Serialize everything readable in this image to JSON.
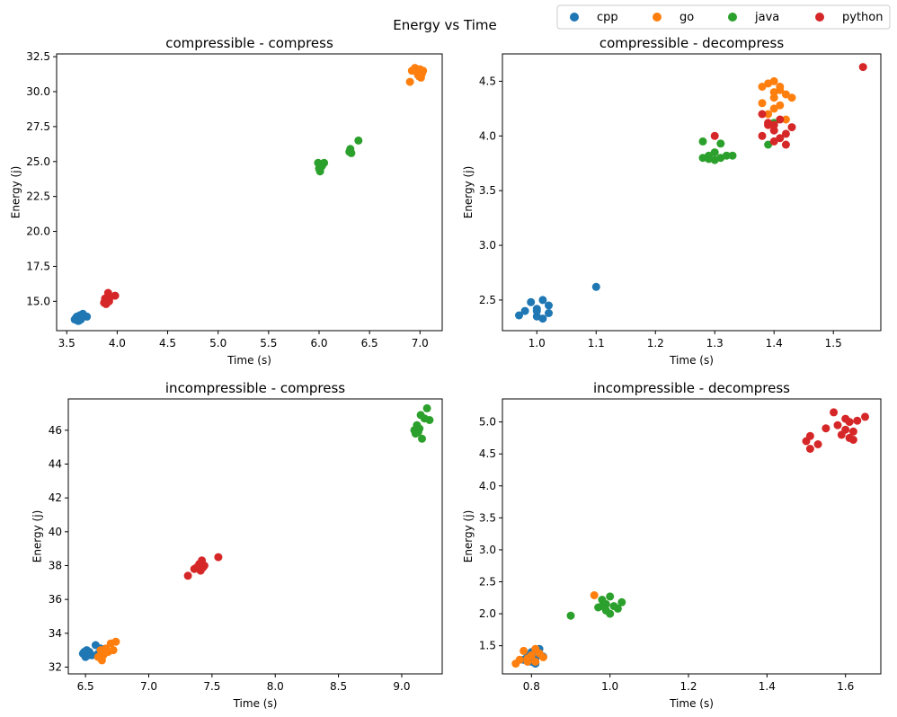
{
  "figure_title": "Energy vs Time",
  "legend": {
    "entries": [
      {
        "name": "cpp",
        "color": "#1f77b4"
      },
      {
        "name": "go",
        "color": "#ff7f0e"
      },
      {
        "name": "java",
        "color": "#2ca02c"
      },
      {
        "name": "python",
        "color": "#d62728"
      }
    ],
    "placement": "top-right"
  },
  "chart_data": [
    {
      "type": "scatter",
      "title": "compressible - compress",
      "xlabel": "Time (s)",
      "ylabel": "Energy (j)",
      "xlim": [
        3.4,
        7.22
      ],
      "ylim": [
        12.9,
        32.7
      ],
      "xticks": [
        "3.5",
        "4.0",
        "4.5",
        "5.0",
        "5.5",
        "6.0",
        "6.5",
        "7.0"
      ],
      "yticks": [
        "15.0",
        "17.5",
        "20.0",
        "22.5",
        "25.0",
        "27.5",
        "30.0",
        "32.5"
      ],
      "series": [
        {
          "name": "cpp",
          "color": "#1f77b4",
          "points": [
            [
              3.58,
              13.7
            ],
            [
              3.6,
              13.9
            ],
            [
              3.61,
              13.6
            ],
            [
              3.62,
              13.8
            ],
            [
              3.63,
              14.0
            ],
            [
              3.64,
              13.7
            ],
            [
              3.66,
              14.1
            ],
            [
              3.7,
              13.9
            ],
            [
              3.59,
              13.8
            ],
            [
              3.62,
              13.6
            ]
          ]
        },
        {
          "name": "go",
          "color": "#ff7f0e",
          "points": [
            [
              6.9,
              30.7
            ],
            [
              6.92,
              31.5
            ],
            [
              6.95,
              31.7
            ],
            [
              6.97,
              31.4
            ],
            [
              6.98,
              31.2
            ],
            [
              7.0,
              31.6
            ],
            [
              7.01,
              31.0
            ],
            [
              7.02,
              31.3
            ],
            [
              6.99,
              31.1
            ],
            [
              7.03,
              31.5
            ]
          ]
        },
        {
          "name": "java",
          "color": "#2ca02c",
          "points": [
            [
              5.99,
              24.9
            ],
            [
              6.0,
              24.5
            ],
            [
              6.01,
              24.3
            ],
            [
              6.02,
              24.6
            ],
            [
              6.03,
              24.7
            ],
            [
              6.05,
              24.9
            ],
            [
              6.3,
              25.7
            ],
            [
              6.31,
              25.9
            ],
            [
              6.32,
              25.6
            ],
            [
              6.39,
              26.5
            ]
          ]
        },
        {
          "name": "python",
          "color": "#d62728",
          "points": [
            [
              3.87,
              14.9
            ],
            [
              3.88,
              15.2
            ],
            [
              3.89,
              14.8
            ],
            [
              3.9,
              15.1
            ],
            [
              3.91,
              15.6
            ],
            [
              3.92,
              15.0
            ],
            [
              3.93,
              15.3
            ],
            [
              3.98,
              15.4
            ],
            [
              3.9,
              14.9
            ]
          ]
        }
      ]
    },
    {
      "type": "scatter",
      "title": "compressible - decompress",
      "xlabel": "Time (s)",
      "ylabel": "Energy (j)",
      "xlim": [
        0.942,
        1.58
      ],
      "ylim": [
        2.22,
        4.75
      ],
      "xticks": [
        "1.0",
        "1.1",
        "1.2",
        "1.3",
        "1.4",
        "1.5"
      ],
      "yticks": [
        "2.5",
        "3.0",
        "3.5",
        "4.0",
        "4.5"
      ],
      "series": [
        {
          "name": "cpp",
          "color": "#1f77b4",
          "points": [
            [
              0.97,
              2.36
            ],
            [
              0.98,
              2.4
            ],
            [
              0.99,
              2.48
            ],
            [
              1.0,
              2.35
            ],
            [
              1.0,
              2.42
            ],
            [
              1.01,
              2.5
            ],
            [
              1.01,
              2.33
            ],
            [
              1.02,
              2.45
            ],
            [
              1.02,
              2.38
            ],
            [
              1.0,
              2.4
            ],
            [
              1.1,
              2.62
            ]
          ]
        },
        {
          "name": "go",
          "color": "#ff7f0e",
          "points": [
            [
              1.38,
              4.45
            ],
            [
              1.38,
              4.3
            ],
            [
              1.39,
              4.2
            ],
            [
              1.39,
              4.48
            ],
            [
              1.4,
              4.4
            ],
            [
              1.4,
              4.5
            ],
            [
              1.4,
              4.35
            ],
            [
              1.41,
              4.28
            ],
            [
              1.41,
              4.42
            ],
            [
              1.42,
              4.38
            ],
            [
              1.42,
              4.15
            ],
            [
              1.43,
              4.35
            ],
            [
              1.4,
              4.25
            ],
            [
              1.39,
              4.1
            ],
            [
              1.41,
              4.45
            ]
          ]
        },
        {
          "name": "java",
          "color": "#2ca02c",
          "points": [
            [
              1.28,
              3.95
            ],
            [
              1.28,
              3.8
            ],
            [
              1.29,
              3.82
            ],
            [
              1.3,
              3.78
            ],
            [
              1.3,
              3.85
            ],
            [
              1.31,
              3.93
            ],
            [
              1.31,
              3.8
            ],
            [
              1.32,
              3.82
            ],
            [
              1.33,
              3.82
            ],
            [
              1.29,
              3.79
            ],
            [
              1.39,
              3.92
            ],
            [
              1.4,
              4.12
            ]
          ]
        },
        {
          "name": "python",
          "color": "#d62728",
          "points": [
            [
              1.3,
              4.0
            ],
            [
              1.38,
              4.2
            ],
            [
              1.38,
              4.0
            ],
            [
              1.39,
              4.1
            ],
            [
              1.4,
              3.95
            ],
            [
              1.4,
              4.05
            ],
            [
              1.41,
              4.15
            ],
            [
              1.41,
              3.98
            ],
            [
              1.42,
              4.02
            ],
            [
              1.42,
              3.92
            ],
            [
              1.43,
              4.08
            ],
            [
              1.4,
              4.1
            ],
            [
              1.39,
              4.12
            ],
            [
              1.55,
              4.63
            ]
          ]
        }
      ]
    },
    {
      "type": "scatter",
      "title": "incompressible - compress",
      "xlabel": "Time (s)",
      "ylabel": "Energy (j)",
      "xlim": [
        6.364,
        9.32
      ],
      "ylim": [
        31.6,
        47.85
      ],
      "xticks": [
        "6.5",
        "7.0",
        "7.5",
        "8.0",
        "8.5",
        "9.0"
      ],
      "yticks": [
        "32",
        "34",
        "36",
        "38",
        "40",
        "42",
        "44",
        "46"
      ],
      "series": [
        {
          "name": "cpp",
          "color": "#1f77b4",
          "points": [
            [
              6.48,
              32.8
            ],
            [
              6.5,
              32.6
            ],
            [
              6.51,
              33.0
            ],
            [
              6.52,
              32.7
            ],
            [
              6.53,
              32.9
            ],
            [
              6.55,
              32.7
            ],
            [
              6.58,
              33.3
            ],
            [
              6.6,
              32.8
            ],
            [
              6.62,
              33.1
            ],
            [
              6.49,
              32.9
            ]
          ]
        },
        {
          "name": "go",
          "color": "#ff7f0e",
          "points": [
            [
              6.6,
              32.6
            ],
            [
              6.62,
              33.0
            ],
            [
              6.63,
              32.4
            ],
            [
              6.65,
              32.8
            ],
            [
              6.66,
              33.1
            ],
            [
              6.7,
              33.4
            ],
            [
              6.72,
              33.0
            ],
            [
              6.74,
              33.5
            ],
            [
              6.68,
              32.9
            ],
            [
              6.64,
              32.7
            ]
          ]
        },
        {
          "name": "java",
          "color": "#2ca02c",
          "points": [
            [
              9.1,
              46.0
            ],
            [
              9.11,
              45.8
            ],
            [
              9.12,
              46.3
            ],
            [
              9.13,
              45.9
            ],
            [
              9.14,
              46.1
            ],
            [
              9.15,
              46.9
            ],
            [
              9.16,
              45.5
            ],
            [
              9.18,
              46.7
            ],
            [
              9.2,
              47.3
            ],
            [
              9.22,
              46.6
            ]
          ]
        },
        {
          "name": "python",
          "color": "#d62728",
          "points": [
            [
              7.31,
              37.4
            ],
            [
              7.36,
              37.8
            ],
            [
              7.38,
              37.9
            ],
            [
              7.4,
              38.1
            ],
            [
              7.41,
              37.7
            ],
            [
              7.42,
              38.3
            ],
            [
              7.43,
              37.9
            ],
            [
              7.44,
              38.0
            ],
            [
              7.55,
              38.5
            ]
          ]
        }
      ]
    },
    {
      "type": "scatter",
      "title": "incompressible - decompress",
      "xlabel": "Time (s)",
      "ylabel": "Energy (j)",
      "xlim": [
        0.726,
        1.69
      ],
      "ylim": [
        1.06,
        5.36
      ],
      "xticks": [
        "0.8",
        "1.0",
        "1.2",
        "1.4",
        "1.6"
      ],
      "yticks": [
        "1.5",
        "2.0",
        "2.5",
        "3.0",
        "3.5",
        "4.0",
        "4.5",
        "5.0"
      ],
      "series": [
        {
          "name": "cpp",
          "color": "#1f77b4",
          "points": [
            [
              0.78,
              1.28
            ],
            [
              0.79,
              1.35
            ],
            [
              0.8,
              1.25
            ],
            [
              0.8,
              1.4
            ],
            [
              0.81,
              1.3
            ],
            [
              0.81,
              1.22
            ],
            [
              0.82,
              1.38
            ],
            [
              0.82,
              1.45
            ],
            [
              0.83,
              1.33
            ],
            [
              0.8,
              1.27
            ]
          ]
        },
        {
          "name": "go",
          "color": "#ff7f0e",
          "points": [
            [
              0.76,
              1.22
            ],
            [
              0.77,
              1.28
            ],
            [
              0.78,
              1.42
            ],
            [
              0.79,
              1.3
            ],
            [
              0.8,
              1.35
            ],
            [
              0.81,
              1.45
            ],
            [
              0.81,
              1.25
            ],
            [
              0.82,
              1.38
            ],
            [
              0.83,
              1.32
            ],
            [
              0.79,
              1.25
            ],
            [
              0.96,
              2.29
            ]
          ]
        },
        {
          "name": "java",
          "color": "#2ca02c",
          "points": [
            [
              0.9,
              1.97
            ],
            [
              0.97,
              2.1
            ],
            [
              0.98,
              2.22
            ],
            [
              0.99,
              2.05
            ],
            [
              0.99,
              2.15
            ],
            [
              1.0,
              2.27
            ],
            [
              1.0,
              2.0
            ],
            [
              1.01,
              2.12
            ],
            [
              1.02,
              2.08
            ],
            [
              1.03,
              2.18
            ],
            [
              0.98,
              2.12
            ]
          ]
        },
        {
          "name": "python",
          "color": "#d62728",
          "points": [
            [
              1.5,
              4.7
            ],
            [
              1.51,
              4.58
            ],
            [
              1.51,
              4.78
            ],
            [
              1.53,
              4.65
            ],
            [
              1.55,
              4.9
            ],
            [
              1.57,
              5.15
            ],
            [
              1.58,
              4.95
            ],
            [
              1.59,
              4.8
            ],
            [
              1.6,
              5.05
            ],
            [
              1.6,
              4.88
            ],
            [
              1.61,
              4.75
            ],
            [
              1.61,
              5.0
            ],
            [
              1.62,
              4.85
            ],
            [
              1.63,
              5.02
            ],
            [
              1.65,
              5.08
            ],
            [
              1.62,
              4.72
            ]
          ]
        }
      ]
    }
  ]
}
